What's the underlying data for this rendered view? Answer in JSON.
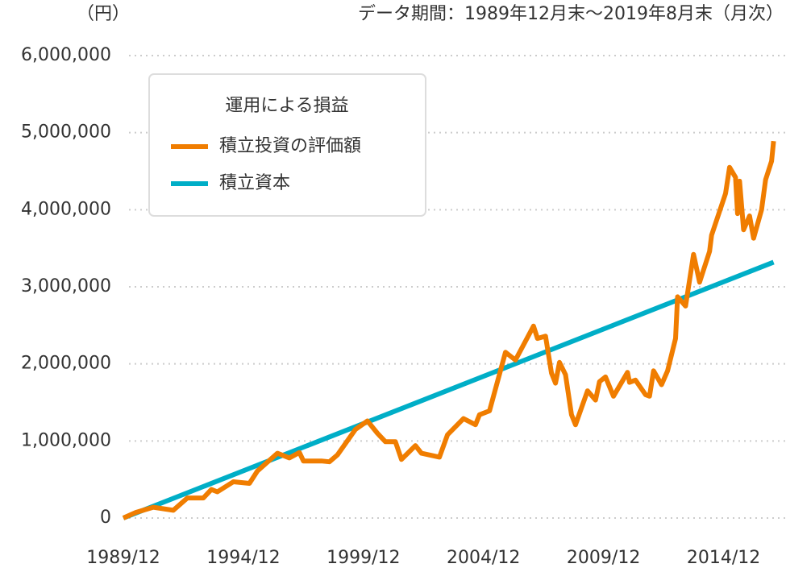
{
  "chart_data": {
    "type": "line",
    "unit_label": "（円）",
    "subtitle": "データ期間：1989年12月末〜2019年8月末（月次）",
    "legend_title": "運用による損益",
    "legend": "upper left",
    "grid": true,
    "xlim": [
      "1989/12",
      "2017/06"
    ],
    "xticks": [
      "1989/12",
      "1994/12",
      "1999/12",
      "2004/12",
      "2009/12",
      "2014/12"
    ],
    "ylim": [
      0,
      6000000
    ],
    "yticks": [
      0,
      {
        "value": 1000000,
        "label": "1,000,000"
      },
      {
        "value": 2000000,
        "label": "2,000,000"
      },
      {
        "value": 3000000,
        "label": "3,000,000"
      },
      {
        "value": 4000000,
        "label": "4,000,000"
      },
      {
        "value": 5000000,
        "label": "5,000,000"
      },
      {
        "value": 6000000,
        "label": "6,000,000"
      }
    ],
    "series": [
      {
        "name": "積立投資の評価額",
        "color": "#f07d00",
        "x": [
          "1989/12",
          "1990/06",
          "1991/03",
          "1992/01",
          "1992/08",
          "1993/04",
          "1993/08",
          "1993/11",
          "1994/07",
          "1995/03",
          "1995/07",
          "1996/05",
          "1996/11",
          "1997/04",
          "1997/06",
          "1998/03",
          "1998/07",
          "1998/11",
          "1999/08",
          "2000/02",
          "2000/07",
          "2000/11",
          "2001/04",
          "2001/07",
          "2002/02",
          "2002/05",
          "2003/02",
          "2003/06",
          "2004/02",
          "2004/08",
          "2004/10",
          "2005/03",
          "2005/11",
          "2006/04",
          "2007/01",
          "2007/03",
          "2007/07",
          "2007/10",
          "2007/12",
          "2008/02",
          "2008/05",
          "2008/08",
          "2008/10",
          "2009/04",
          "2009/08",
          "2009/10",
          "2010/01",
          "2010/05",
          "2010/12",
          "2011/01",
          "2011/04",
          "2011/09",
          "2011/11",
          "2012/01",
          "2012/05",
          "2012/08",
          "2012/12",
          "2013/01",
          "2013/05",
          "2013/09",
          "2013/12",
          "2014/05",
          "2014/06",
          "2015/01",
          "2015/03",
          "2015/06",
          "2015/07",
          "2015/08",
          "2015/10",
          "2016/01",
          "2016/03",
          "2016/07",
          "2016/09",
          "2016/12",
          "2017/01"
        ],
        "values": [
          0,
          70000,
          140000,
          100000,
          260000,
          260000,
          370000,
          340000,
          470000,
          450000,
          610000,
          840000,
          780000,
          850000,
          740000,
          740000,
          730000,
          820000,
          1150000,
          1260000,
          1100000,
          990000,
          990000,
          760000,
          940000,
          840000,
          790000,
          1080000,
          1290000,
          1210000,
          1340000,
          1390000,
          2150000,
          2050000,
          2490000,
          2330000,
          2360000,
          1880000,
          1750000,
          2020000,
          1860000,
          1340000,
          1210000,
          1650000,
          1530000,
          1770000,
          1830000,
          1580000,
          1890000,
          1760000,
          1790000,
          1600000,
          1580000,
          1910000,
          1730000,
          1910000,
          2330000,
          2870000,
          2750000,
          3420000,
          3060000,
          3460000,
          3670000,
          4210000,
          4550000,
          4420000,
          3950000,
          4370000,
          3740000,
          3920000,
          3630000,
          4000000,
          4390000,
          4630000,
          4890000
        ]
      },
      {
        "name": "積立資本",
        "color": "#00aec7",
        "x": [
          "1989/12",
          "2017/01"
        ],
        "values": [
          0,
          3320000
        ]
      }
    ]
  }
}
